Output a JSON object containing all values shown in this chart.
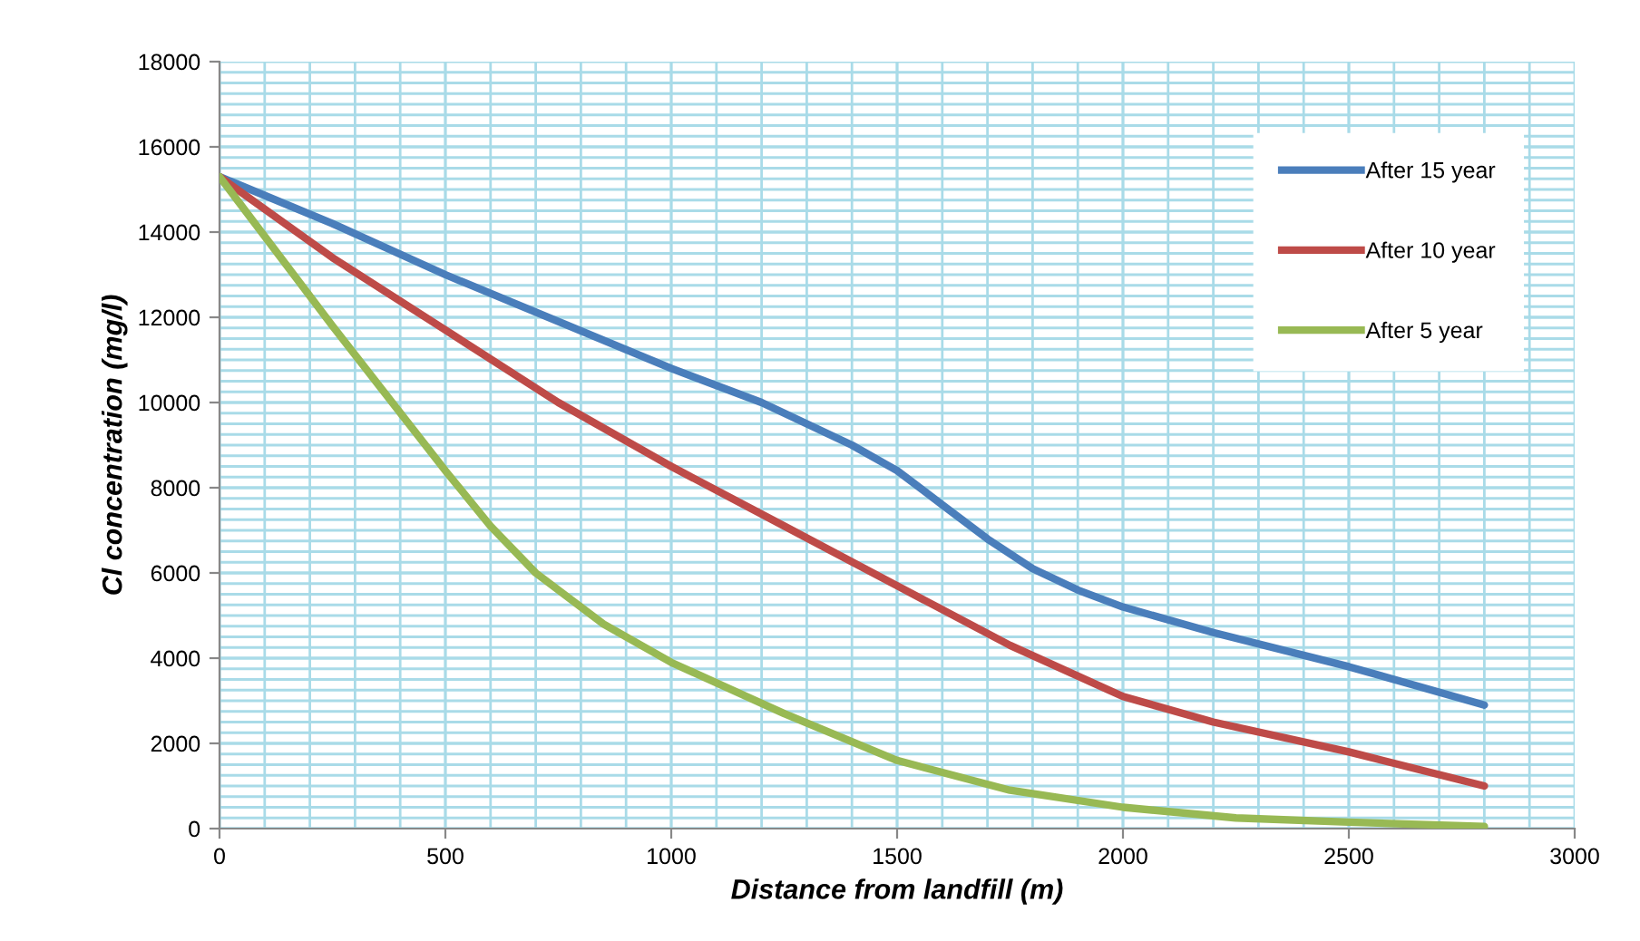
{
  "chart_data": {
    "type": "line",
    "xlabel": "Distance from landfill (m)",
    "ylabel": "Cl concentration (mg/l)",
    "xlim": [
      0,
      3000
    ],
    "xticks": [
      0,
      500,
      1000,
      1500,
      2000,
      2500,
      3000
    ],
    "ylim": [
      0,
      18000
    ],
    "yticks": [
      0,
      2000,
      4000,
      6000,
      8000,
      10000,
      12000,
      14000,
      16000,
      18000
    ],
    "grid": true,
    "legend": "top right",
    "marker": "none",
    "line_style": "solid",
    "series": [
      {
        "name": "After 15 year",
        "color": "#4a7ebb",
        "x": [
          0,
          250,
          500,
          750,
          1000,
          1200,
          1400,
          1500,
          1600,
          1700,
          1800,
          1900,
          2000,
          2200,
          2500,
          2800
        ],
        "values": [
          15300,
          14200,
          13000,
          11900,
          10800,
          10000,
          9000,
          8400,
          7600,
          6800,
          6100,
          5600,
          5200,
          4600,
          3800,
          2900
        ]
      },
      {
        "name": "After 10 year",
        "color": "#be4b48",
        "x": [
          0,
          250,
          500,
          750,
          1000,
          1250,
          1500,
          1750,
          2000,
          2200,
          2500,
          2800
        ],
        "values": [
          15300,
          13400,
          11700,
          10000,
          8500,
          7100,
          5700,
          4300,
          3100,
          2500,
          1800,
          1000
        ]
      },
      {
        "name": "After 5 year",
        "color": "#98b954",
        "x": [
          0,
          250,
          500,
          600,
          700,
          850,
          1000,
          1250,
          1500,
          1750,
          2000,
          2250,
          2500,
          2800
        ],
        "values": [
          15300,
          11800,
          8400,
          7100,
          6000,
          4800,
          3900,
          2700,
          1600,
          900,
          500,
          250,
          150,
          50
        ]
      }
    ]
  }
}
